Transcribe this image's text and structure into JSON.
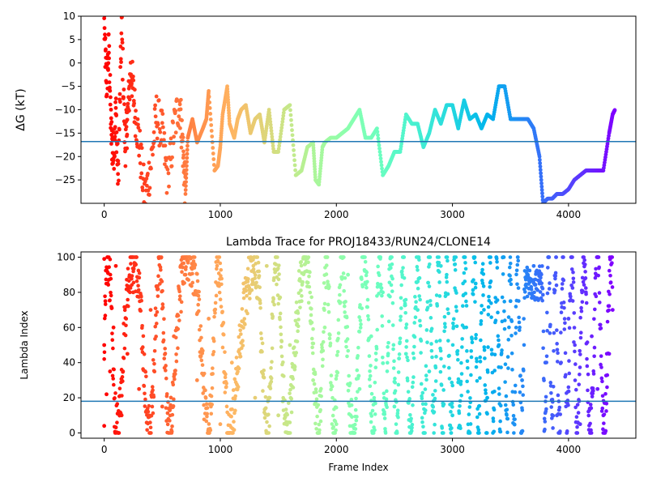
{
  "chart_data": [
    {
      "type": "scatter",
      "title": "",
      "xlabel": "",
      "ylabel": "ΔG (kT)",
      "xlim": [
        -200,
        4580
      ],
      "ylim": [
        -30,
        10
      ],
      "xticks": [
        0,
        1000,
        2000,
        3000,
        4000
      ],
      "xtick_labels": [
        "0",
        "1000",
        "2000",
        "3000",
        "4000"
      ],
      "yticks": [
        10,
        5,
        0,
        -5,
        -10,
        -15,
        -20,
        -25
      ],
      "ytick_labels": [
        "10",
        "5",
        "0",
        "−5",
        "−10",
        "−15",
        "−20",
        "−25"
      ],
      "hline": -16.8,
      "hline_color": "#1f77b4",
      "colormap": "rainbow (reversed: red at frame 0, violet at last frame)",
      "grid": false,
      "legend": "none",
      "series": [
        {
          "x": [
            0,
            20,
            40,
            60,
            80,
            100,
            120,
            150,
            180,
            200,
            230,
            260,
            300,
            350,
            400,
            450,
            500,
            550,
            600,
            650,
            680,
            700,
            720,
            760,
            800,
            850,
            880,
            900,
            950,
            980,
            1000,
            1020,
            1060,
            1080,
            1120,
            1150,
            1180,
            1220,
            1260,
            1300,
            1340,
            1380,
            1420,
            1460,
            1500,
            1550,
            1600,
            1650,
            1700,
            1750,
            1800,
            1820,
            1850,
            1880,
            1900,
            1950,
            2000,
            2050,
            2100,
            2150,
            2200,
            2250,
            2300,
            2350,
            2400,
            2450,
            2500,
            2550,
            2600,
            2650,
            2700,
            2750,
            2800,
            2850,
            2900,
            2950,
            3000,
            3050,
            3100,
            3150,
            3200,
            3250,
            3300,
            3350,
            3400,
            3450,
            3500,
            3550,
            3600,
            3650,
            3700,
            3750,
            3780,
            3820,
            3860,
            3900,
            3950,
            4000,
            4050,
            4100,
            4150,
            4200,
            4250,
            4300,
            4350,
            4380,
            4400
          ],
          "y": [
            8,
            -5,
            3,
            -15,
            -20,
            -10,
            -25,
            8,
            -18,
            -12,
            -1,
            -9,
            -17,
            -29,
            -22,
            -11,
            -15,
            -26,
            -14,
            -8,
            -19,
            -28,
            -16,
            -12,
            -17,
            -14,
            -12,
            -6,
            -23,
            -22,
            -18,
            -11,
            -5,
            -13,
            -16,
            -12,
            -10,
            -9,
            -15,
            -12,
            -11,
            -17,
            -10,
            -19,
            -19,
            -10,
            -9,
            -24,
            -23,
            -18,
            -17,
            -25,
            -26,
            -18,
            -17,
            -16,
            -16,
            -15,
            -14,
            -12,
            -10,
            -16,
            -16,
            -14,
            -24,
            -22,
            -19,
            -19,
            -11,
            -13,
            -13,
            -18,
            -15,
            -10,
            -13,
            -9,
            -9,
            -14,
            -8,
            -12,
            -11,
            -14,
            -11,
            -12,
            -5,
            -5,
            -12,
            -12,
            -12,
            -12,
            -14,
            -20,
            -30,
            -29,
            -29,
            -28,
            -28,
            -27,
            -25,
            -24,
            -23,
            -23,
            -23,
            -23,
            -15,
            -11,
            -10
          ]
        }
      ]
    },
    {
      "type": "scatter",
      "title": "Lambda Trace for PROJ18433/RUN24/CLONE14",
      "xlabel": "Frame Index",
      "ylabel": "Lambda Index",
      "xlim": [
        -200,
        4580
      ],
      "ylim": [
        -3,
        103
      ],
      "xticks": [
        0,
        1000,
        2000,
        3000,
        4000
      ],
      "xtick_labels": [
        "0",
        "1000",
        "2000",
        "3000",
        "4000"
      ],
      "yticks": [
        0,
        20,
        40,
        60,
        80,
        100
      ],
      "ytick_labels": [
        "0",
        "20",
        "40",
        "60",
        "80",
        "100"
      ],
      "hline": 18,
      "hline_color": "#1f77b4",
      "colormap": "rainbow (reversed: red at frame 0, violet at last frame)",
      "grid": false,
      "legend": "none",
      "series": [
        {
          "description_note_free": true,
          "x": [
            0,
            0,
            0,
            10,
            20,
            30,
            50,
            80,
            100,
            150,
            200,
            250,
            300,
            400,
            500,
            600,
            700,
            800,
            900,
            1000,
            1100,
            1200,
            1300,
            1400,
            1500,
            1600,
            1700,
            1800,
            1900,
            2000,
            2100,
            2200,
            2300,
            2400,
            2500,
            2600,
            2700,
            2800,
            2900,
            3000,
            3100,
            3200,
            3300,
            3400,
            3500,
            3600,
            3650,
            3700,
            3750,
            3800,
            3900,
            4000,
            4100,
            4150,
            4200,
            4250,
            4300,
            4350,
            4380
          ],
          "y": [
            99,
            4,
            50,
            75,
            22,
            85,
            35,
            60,
            95,
            10,
            45,
            80,
            25,
            70,
            15,
            55,
            90,
            30,
            65,
            5,
            40,
            85,
            20,
            95,
            10,
            50,
            75,
            30,
            60,
            5,
            90,
            25,
            55,
            80,
            15,
            45,
            70,
            35,
            95,
            10,
            60,
            85,
            20,
            50,
            75,
            30,
            90,
            95,
            85,
            40,
            10,
            65,
            5,
            80,
            55,
            25,
            10,
            45,
            70
          ]
        }
      ]
    }
  ]
}
